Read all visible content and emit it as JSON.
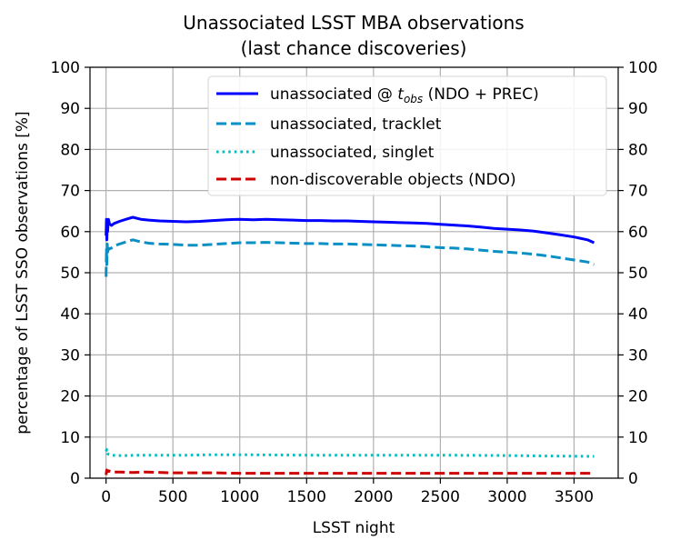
{
  "chart_data": {
    "type": "line",
    "title": "Unassociated LSST MBA observations",
    "subtitle": "(last chance discoveries)",
    "xlabel": "LSST night",
    "ylabel": "percentage of LSST SSO observations [%]",
    "xlim": [
      -120,
      3830
    ],
    "ylim": [
      0,
      100
    ],
    "xticks": [
      0,
      500,
      1000,
      1500,
      2000,
      2500,
      3000,
      3500
    ],
    "yticks": [
      0,
      10,
      20,
      30,
      40,
      50,
      60,
      70,
      80,
      90,
      100
    ],
    "grid": true,
    "legend_placement": "top-right",
    "series": [
      {
        "name_main": "unassociated @ ",
        "name_sym": "t",
        "name_sub": "obs",
        "name_tail": " (NDO + PREC)",
        "color": "#0000ff",
        "style": "solid",
        "x": [
          0,
          3,
          6,
          9,
          12,
          18,
          25,
          40,
          60,
          100,
          150,
          200,
          260,
          320,
          400,
          500,
          600,
          700,
          800,
          900,
          1000,
          1100,
          1200,
          1300,
          1400,
          1500,
          1600,
          1700,
          1800,
          1900,
          2000,
          2100,
          2200,
          2300,
          2400,
          2500,
          2600,
          2700,
          2800,
          2900,
          3000,
          3100,
          3200,
          3300,
          3400,
          3500,
          3600,
          3650
        ],
        "y": [
          59,
          63,
          58,
          61.5,
          60,
          63,
          62,
          61.5,
          62,
          62.5,
          63,
          63.5,
          63,
          62.8,
          62.6,
          62.5,
          62.4,
          62.5,
          62.7,
          62.9,
          63,
          62.9,
          63,
          62.9,
          62.8,
          62.7,
          62.7,
          62.6,
          62.6,
          62.5,
          62.4,
          62.3,
          62.2,
          62.1,
          62,
          61.8,
          61.6,
          61.4,
          61.1,
          60.8,
          60.6,
          60.4,
          60.1,
          59.7,
          59.2,
          58.7,
          58,
          57.3
        ]
      },
      {
        "name": "unassociated, tracklet",
        "color": "#0a8fc4",
        "style": "dashed",
        "x": [
          0,
          3,
          6,
          9,
          12,
          18,
          25,
          40,
          60,
          100,
          150,
          200,
          260,
          320,
          400,
          500,
          600,
          700,
          800,
          900,
          1000,
          1100,
          1200,
          1300,
          1400,
          1500,
          1600,
          1700,
          1800,
          1900,
          2000,
          2100,
          2200,
          2300,
          2400,
          2500,
          2600,
          2700,
          2800,
          2900,
          3000,
          3100,
          3200,
          3300,
          3400,
          3500,
          3600,
          3650
        ],
        "y": [
          49,
          56,
          52,
          57,
          55,
          56,
          55.8,
          56,
          56.5,
          57,
          57.5,
          58,
          57.5,
          57.2,
          57,
          56.9,
          56.7,
          56.7,
          56.9,
          57.1,
          57.3,
          57.3,
          57.4,
          57.3,
          57.2,
          57.1,
          57.1,
          57,
          57,
          56.9,
          56.8,
          56.7,
          56.6,
          56.5,
          56.3,
          56.1,
          56,
          55.8,
          55.5,
          55.2,
          55,
          54.8,
          54.5,
          54.1,
          53.6,
          53.1,
          52.6,
          52
        ]
      },
      {
        "name": "unassociated, singlet",
        "color": "#00bfbf",
        "style": "dotted",
        "x": [
          0,
          5,
          10,
          20,
          40,
          80,
          150,
          250,
          400,
          600,
          800,
          1000,
          1500,
          2000,
          2500,
          3000,
          3300,
          3650
        ],
        "y": [
          6.5,
          7,
          6,
          5.8,
          5.6,
          5.5,
          5.5,
          5.6,
          5.6,
          5.6,
          5.7,
          5.7,
          5.6,
          5.6,
          5.6,
          5.5,
          5.4,
          5.3
        ]
      },
      {
        "name": "non-discoverable objects (NDO)",
        "color": "#cc0000",
        "style": "dashed",
        "x": [
          0,
          5,
          10,
          20,
          40,
          100,
          200,
          300,
          500,
          800,
          1000,
          1500,
          2000,
          2500,
          3000,
          3650
        ],
        "y": [
          0.8,
          2.0,
          1.6,
          1.8,
          1.5,
          1.5,
          1.4,
          1.5,
          1.3,
          1.3,
          1.2,
          1.2,
          1.2,
          1.2,
          1.2,
          1.2
        ]
      }
    ]
  }
}
